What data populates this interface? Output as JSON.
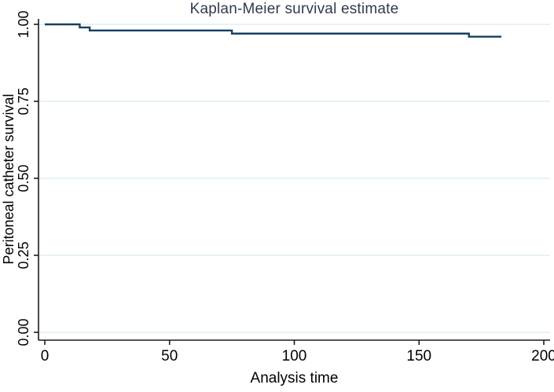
{
  "figure": {
    "background": "#ffffff"
  },
  "colors": {
    "curve": "#16405f",
    "gridline": "#dfeef0",
    "axis": "#1c1c1c",
    "tick_label": "#000000",
    "title": "#2e3a50"
  },
  "chart_data": {
    "type": "line",
    "subtype": "step",
    "title": "Kaplan-Meier survival estimate",
    "xlabel": "Analysis time",
    "ylabel": "Peritoneal catheter survival",
    "xlim": [
      0,
      200
    ],
    "ylim": [
      0.0,
      1.0
    ],
    "grid": true,
    "legend": false,
    "x_ticks": [
      {
        "value": 0,
        "label": "0"
      },
      {
        "value": 50,
        "label": "50"
      },
      {
        "value": 100,
        "label": "100"
      },
      {
        "value": 150,
        "label": "150"
      },
      {
        "value": 200,
        "label": "200"
      }
    ],
    "y_ticks": [
      {
        "value": 0.0,
        "label": "0.00"
      },
      {
        "value": 0.25,
        "label": "0.25"
      },
      {
        "value": 0.5,
        "label": "0.50"
      },
      {
        "value": 0.75,
        "label": "0.75"
      },
      {
        "value": 1.0,
        "label": "1.00"
      }
    ],
    "series": [
      {
        "name": "Kaplan-Meier survival estimate",
        "step_points": [
          {
            "t": 0,
            "s": 1.0
          },
          {
            "t": 14,
            "s": 0.99
          },
          {
            "t": 18,
            "s": 0.98
          },
          {
            "t": 75,
            "s": 0.97
          },
          {
            "t": 170,
            "s": 0.96
          }
        ],
        "t_end": 183
      }
    ]
  }
}
